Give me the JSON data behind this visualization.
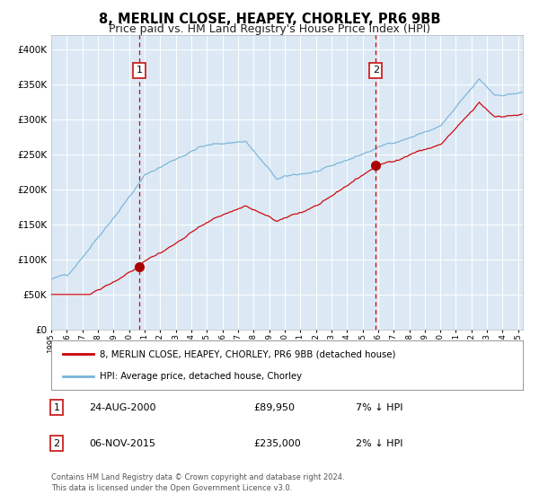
{
  "title": "8, MERLIN CLOSE, HEAPEY, CHORLEY, PR6 9BB",
  "subtitle": "Price paid vs. HM Land Registry's House Price Index (HPI)",
  "title_fontsize": 10.5,
  "subtitle_fontsize": 9,
  "background_color": "#ffffff",
  "plot_bg_color": "#dce9f5",
  "ylim": [
    0,
    420000
  ],
  "yticks": [
    0,
    50000,
    100000,
    150000,
    200000,
    250000,
    300000,
    350000,
    400000
  ],
  "year_start": 1995,
  "year_end": 2025,
  "vline1_year": 2000.65,
  "vline2_year": 2015.85,
  "marker1_price": 89950,
  "marker2_price": 235000,
  "legend_line1": "8, MERLIN CLOSE, HEAPEY, CHORLEY, PR6 9BB (detached house)",
  "legend_line2": "HPI: Average price, detached house, Chorley",
  "table_row1": [
    "1",
    "24-AUG-2000",
    "£89,950",
    "7% ↓ HPI"
  ],
  "table_row2": [
    "2",
    "06-NOV-2015",
    "£235,000",
    "2% ↓ HPI"
  ],
  "footer": "Contains HM Land Registry data © Crown copyright and database right 2024.\nThis data is licensed under the Open Government Licence v3.0.",
  "hpi_color": "#7ab4d8",
  "price_color": "#cc0000",
  "marker_color": "#aa0000",
  "vline_color": "#cc0000",
  "grid_color": "#c8d8e8",
  "box_edge_color": "#cc2222"
}
